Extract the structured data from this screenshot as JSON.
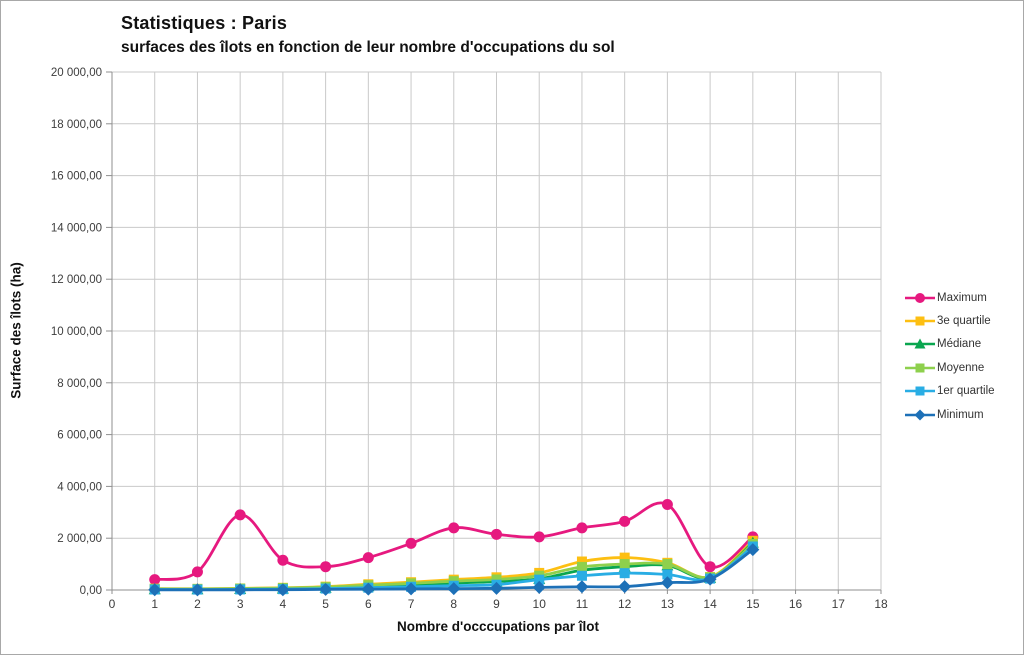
{
  "page": {
    "background": "#ffffff",
    "border_color": "#a8a8a8"
  },
  "header": {
    "title": "Statistiques : Paris",
    "subtitle": "surfaces des îlots en fonction de leur nombre d'occupations du sol"
  },
  "chart_data": {
    "type": "line",
    "title": "Statistiques : Paris",
    "subtitle": "surfaces des îlots en fonction de leur nombre d'occupations du sol",
    "xlabel": "Nombre d'occcupations par îlot",
    "ylabel": "Surface des îlots (ha)",
    "xlim": [
      0,
      18
    ],
    "ylim": [
      0,
      20000
    ],
    "grid": true,
    "legend_position": "right",
    "x_ticks": [
      0,
      1,
      2,
      3,
      4,
      5,
      6,
      7,
      8,
      9,
      10,
      11,
      12,
      13,
      14,
      15,
      16,
      17,
      18
    ],
    "y_tick_values": [
      0,
      2000,
      4000,
      6000,
      8000,
      10000,
      12000,
      14000,
      16000,
      18000,
      20000
    ],
    "y_tick_labels": [
      "0,00",
      "2 000,00",
      "4 000,00",
      "6 000,00",
      "8 000,00",
      "10 000,00",
      "12 000,00",
      "14 000,00",
      "16 000,00",
      "18 000,00",
      "20 000,00"
    ],
    "x": [
      1,
      2,
      3,
      4,
      5,
      6,
      7,
      8,
      9,
      10,
      11,
      12,
      13,
      14,
      15
    ],
    "series": [
      {
        "name": "Maximum",
        "color": "#e6197f",
        "marker": "circle",
        "values": [
          400,
          700,
          2900,
          1150,
          900,
          1250,
          1800,
          2400,
          2150,
          2050,
          2400,
          2650,
          3300,
          900,
          2050
        ]
      },
      {
        "name": "3e quartile",
        "color": "#fdbf12",
        "marker": "square",
        "values": [
          50,
          45,
          60,
          85,
          130,
          220,
          300,
          400,
          490,
          660,
          1100,
          1250,
          1050,
          500,
          1900
        ]
      },
      {
        "name": "Médiane",
        "color": "#0aa64f",
        "marker": "triangle",
        "values": [
          30,
          28,
          38,
          55,
          85,
          145,
          200,
          265,
          330,
          430,
          760,
          900,
          950,
          470,
          1830
        ]
      },
      {
        "name": "Moyenne",
        "color": "#8ed04d",
        "marker": "square",
        "values": [
          45,
          40,
          55,
          75,
          110,
          185,
          255,
          340,
          405,
          550,
          890,
          1000,
          1000,
          490,
          1780
        ]
      },
      {
        "name": "1er quartile",
        "color": "#29ade4",
        "marker": "square",
        "values": [
          18,
          16,
          22,
          32,
          55,
          90,
          125,
          165,
          205,
          400,
          550,
          650,
          600,
          440,
          1680
        ]
      },
      {
        "name": "Minimum",
        "color": "#1d70b7",
        "marker": "diamond",
        "values": [
          8,
          6,
          9,
          12,
          22,
          32,
          42,
          52,
          65,
          100,
          125,
          130,
          280,
          420,
          1560
        ]
      }
    ]
  }
}
